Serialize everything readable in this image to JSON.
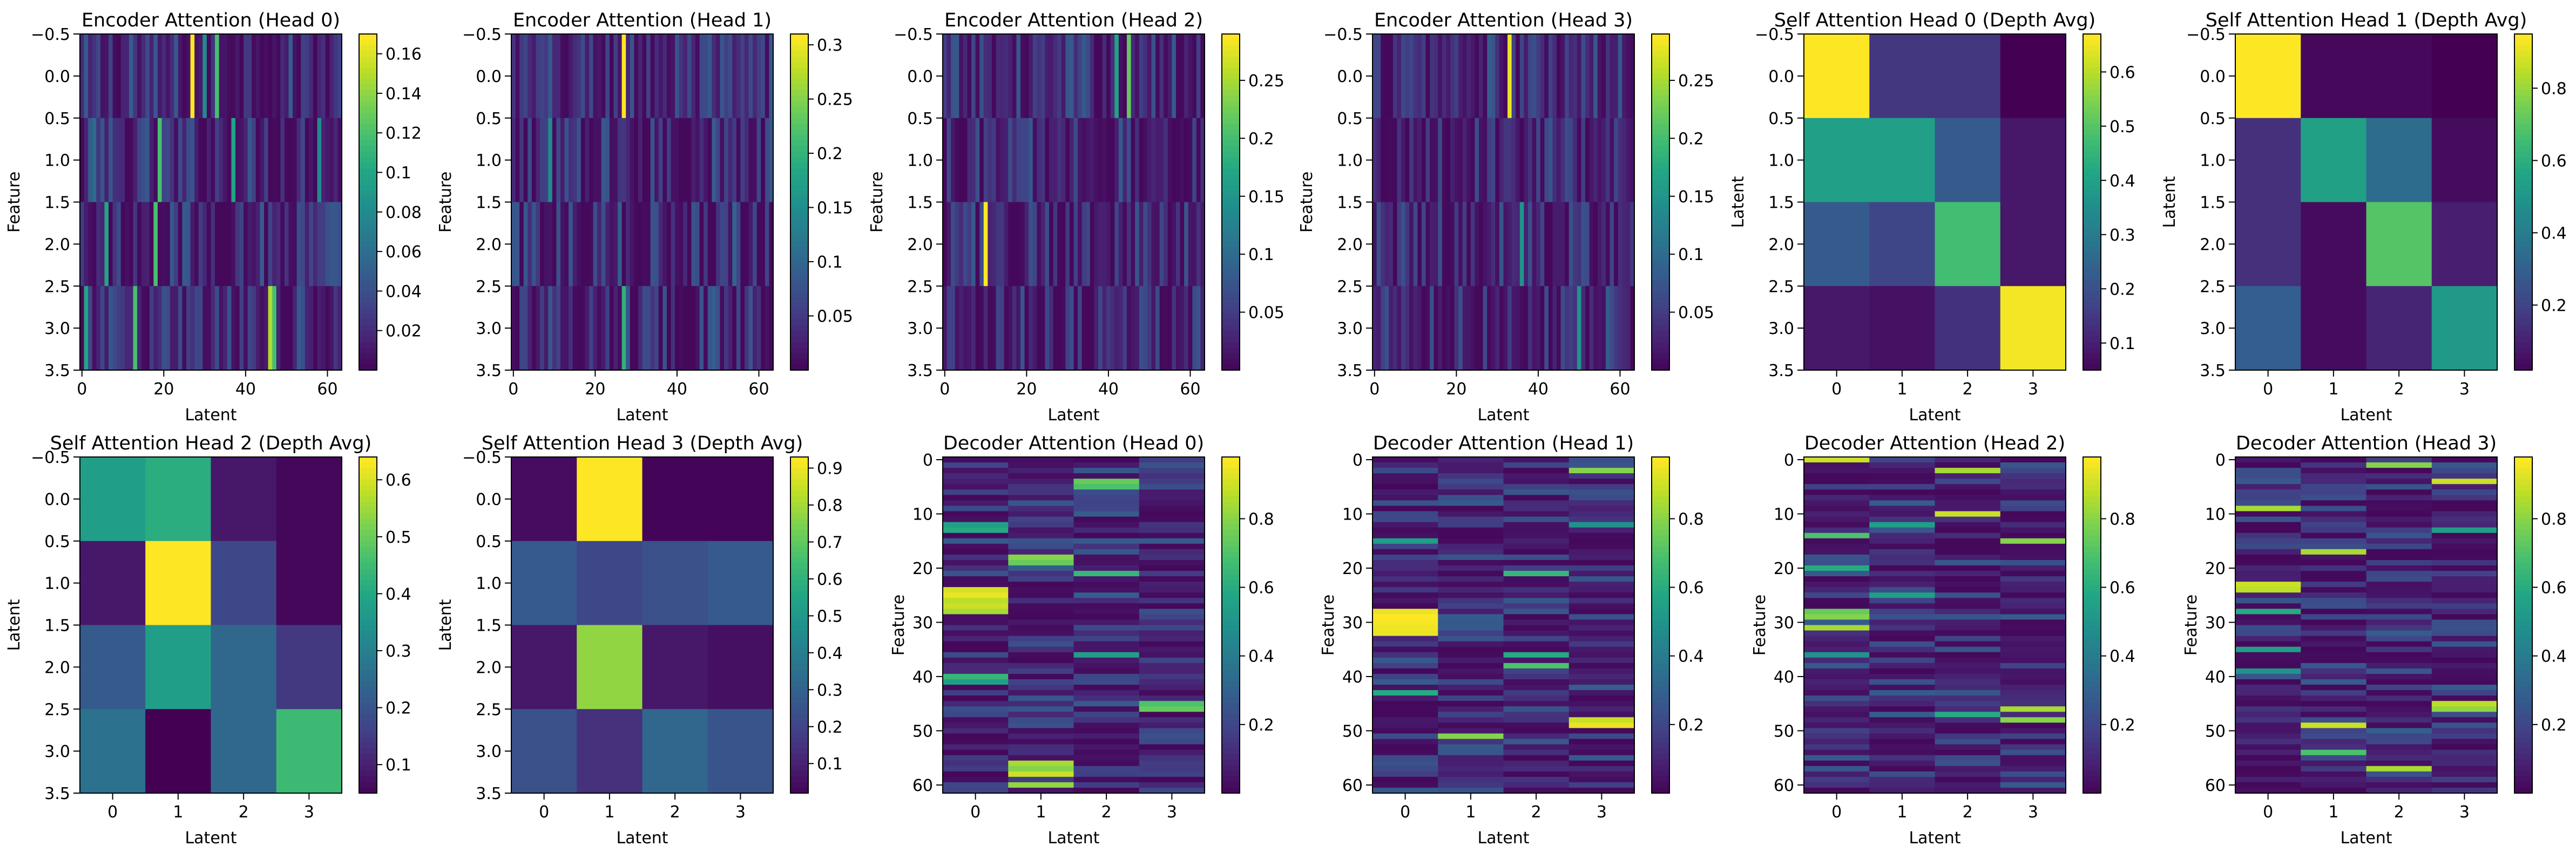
{
  "chart_data": [
    {
      "type": "heatmap",
      "title": "Encoder Attention (Head 0)",
      "xlabel": "Latent",
      "ylabel": "Feature",
      "xticks": [
        0,
        20,
        40,
        60
      ],
      "yticks": [
        -0.5,
        0.0,
        0.5,
        1.0,
        1.5,
        2.0,
        2.5,
        3.0,
        3.5
      ],
      "colorbar_ticks": [
        0.02,
        0.04,
        0.06,
        0.08,
        0.1,
        0.12,
        0.14,
        0.16
      ],
      "vmin": 0.0,
      "vmax": 0.17,
      "rows": 4,
      "cols": 64,
      "hot": [
        [
          0,
          27,
          0.17
        ],
        [
          0,
          33,
          0.12
        ],
        [
          0,
          30,
          0.08
        ],
        [
          0,
          12,
          0.05
        ],
        [
          1,
          19,
          0.12
        ],
        [
          1,
          37,
          0.1
        ],
        [
          1,
          58,
          0.08
        ],
        [
          1,
          3,
          0.06
        ],
        [
          2,
          6,
          0.1
        ],
        [
          2,
          18,
          0.12
        ],
        [
          2,
          44,
          0.05
        ],
        [
          3,
          1,
          0.1
        ],
        [
          3,
          13,
          0.12
        ],
        [
          3,
          46,
          0.15
        ],
        [
          3,
          47,
          0.12
        ]
      ]
    },
    {
      "type": "heatmap",
      "title": "Encoder Attention (Head 1)",
      "xlabel": "Latent",
      "ylabel": "Feature",
      "xticks": [
        0,
        20,
        40,
        60
      ],
      "yticks": [
        -0.5,
        0.0,
        0.5,
        1.0,
        1.5,
        2.0,
        2.5,
        3.0,
        3.5
      ],
      "colorbar_ticks": [
        0.05,
        0.1,
        0.15,
        0.2,
        0.25,
        0.3
      ],
      "vmin": 0.0,
      "vmax": 0.31,
      "rows": 4,
      "cols": 64,
      "hot": [
        [
          0,
          27,
          0.31
        ],
        [
          0,
          40,
          0.08
        ],
        [
          1,
          9,
          0.15
        ],
        [
          1,
          23,
          0.08
        ],
        [
          2,
          5,
          0.08
        ],
        [
          2,
          54,
          0.1
        ],
        [
          3,
          27,
          0.2
        ],
        [
          3,
          11,
          0.06
        ]
      ]
    },
    {
      "type": "heatmap",
      "title": "Encoder Attention (Head 2)",
      "xlabel": "Latent",
      "ylabel": "Feature",
      "xticks": [
        0,
        20,
        40,
        60
      ],
      "yticks": [
        -0.5,
        0.0,
        0.5,
        1.0,
        1.5,
        2.0,
        2.5,
        3.0,
        3.5
      ],
      "colorbar_ticks": [
        0.05,
        0.1,
        0.15,
        0.2,
        0.25
      ],
      "vmin": 0.0,
      "vmax": 0.29,
      "rows": 4,
      "cols": 64,
      "hot": [
        [
          0,
          42,
          0.17
        ],
        [
          0,
          45,
          0.22
        ],
        [
          0,
          30,
          0.08
        ],
        [
          1,
          21,
          0.08
        ],
        [
          2,
          10,
          0.29
        ],
        [
          2,
          35,
          0.06
        ],
        [
          3,
          48,
          0.07
        ]
      ]
    },
    {
      "type": "heatmap",
      "title": "Encoder Attention (Head 3)",
      "xlabel": "Latent",
      "ylabel": "Feature",
      "xticks": [
        0,
        20,
        40,
        60
      ],
      "yticks": [
        -0.5,
        0.0,
        0.5,
        1.0,
        1.5,
        2.0,
        2.5,
        3.0,
        3.5
      ],
      "colorbar_ticks": [
        0.05,
        0.1,
        0.15,
        0.2,
        0.25
      ],
      "vmin": 0.0,
      "vmax": 0.29,
      "rows": 4,
      "cols": 64,
      "hot": [
        [
          0,
          33,
          0.28
        ],
        [
          0,
          36,
          0.06
        ],
        [
          1,
          48,
          0.06
        ],
        [
          2,
          36,
          0.15
        ],
        [
          2,
          20,
          0.05
        ],
        [
          3,
          50,
          0.15
        ],
        [
          3,
          7,
          0.05
        ]
      ]
    },
    {
      "type": "heatmap",
      "title": "Self Attention Head 0 (Depth Avg)",
      "xlabel": "Latent",
      "ylabel": "Latent",
      "xticks": [
        0,
        1,
        2,
        3
      ],
      "yticks": [
        -0.5,
        0.0,
        0.5,
        1.0,
        1.5,
        2.0,
        2.5,
        3.0,
        3.5
      ],
      "colorbar_ticks": [
        0.1,
        0.2,
        0.3,
        0.4,
        0.5,
        0.6
      ],
      "vmin": 0.05,
      "vmax": 0.67,
      "matrix": [
        [
          0.67,
          0.15,
          0.15,
          0.05
        ],
        [
          0.4,
          0.4,
          0.23,
          0.09
        ],
        [
          0.23,
          0.18,
          0.48,
          0.09
        ],
        [
          0.09,
          0.08,
          0.14,
          0.66
        ]
      ]
    },
    {
      "type": "heatmap",
      "title": "Self Attention Head 1 (Depth Avg)",
      "xlabel": "Latent",
      "ylabel": "Latent",
      "xticks": [
        0,
        1,
        2,
        3
      ],
      "yticks": [
        -0.5,
        0.0,
        0.5,
        1.0,
        1.5,
        2.0,
        2.5,
        3.0,
        3.5
      ],
      "colorbar_ticks": [
        0.2,
        0.4,
        0.6,
        0.8
      ],
      "vmin": 0.02,
      "vmax": 0.95,
      "matrix": [
        [
          0.95,
          0.04,
          0.04,
          0.02
        ],
        [
          0.15,
          0.55,
          0.35,
          0.05
        ],
        [
          0.15,
          0.05,
          0.7,
          0.1
        ],
        [
          0.3,
          0.05,
          0.12,
          0.52
        ]
      ]
    },
    {
      "type": "heatmap",
      "title": "Self Attention Head 2 (Depth Avg)",
      "xlabel": "Latent",
      "ylabel": "Latent",
      "xticks": [
        0,
        1,
        2,
        3
      ],
      "yticks": [
        -0.5,
        0.0,
        0.5,
        1.0,
        1.5,
        2.0,
        2.5,
        3.0,
        3.5
      ],
      "colorbar_ticks": [
        0.1,
        0.2,
        0.3,
        0.4,
        0.5,
        0.6
      ],
      "vmin": 0.05,
      "vmax": 0.64,
      "matrix": [
        [
          0.38,
          0.42,
          0.09,
          0.06
        ],
        [
          0.09,
          0.64,
          0.18,
          0.06
        ],
        [
          0.22,
          0.38,
          0.25,
          0.15
        ],
        [
          0.27,
          0.05,
          0.25,
          0.45
        ]
      ]
    },
    {
      "type": "heatmap",
      "title": "Self Attention Head 3 (Depth Avg)",
      "xlabel": "Latent",
      "ylabel": "Latent",
      "xticks": [
        0,
        1,
        2,
        3
      ],
      "yticks": [
        -0.5,
        0.0,
        0.5,
        1.0,
        1.5,
        2.0,
        2.5,
        3.0,
        3.5
      ],
      "colorbar_ticks": [
        0.1,
        0.2,
        0.3,
        0.4,
        0.5,
        0.6,
        0.7,
        0.8,
        0.9
      ],
      "vmin": 0.02,
      "vmax": 0.93,
      "matrix": [
        [
          0.05,
          0.93,
          0.03,
          0.03
        ],
        [
          0.28,
          0.22,
          0.25,
          0.28
        ],
        [
          0.08,
          0.78,
          0.08,
          0.06
        ],
        [
          0.25,
          0.15,
          0.32,
          0.26
        ]
      ]
    },
    {
      "type": "heatmap",
      "title": "Decoder Attention (Head 0)",
      "xlabel": "Latent",
      "ylabel": "Feature",
      "xticks": [
        0,
        1,
        2,
        3
      ],
      "yticks": [
        0,
        10,
        20,
        30,
        40,
        50,
        60
      ],
      "colorbar_ticks": [
        0.2,
        0.4,
        0.6,
        0.8
      ],
      "vmin": 0.0,
      "vmax": 0.98,
      "rows": 62,
      "cols": 4,
      "hot": [
        [
          24,
          0,
          0.92
        ],
        [
          25,
          0,
          0.95
        ],
        [
          26,
          0,
          0.88
        ],
        [
          27,
          0,
          0.9
        ],
        [
          28,
          0,
          0.85
        ],
        [
          4,
          2,
          0.75
        ],
        [
          5,
          2,
          0.7
        ],
        [
          18,
          1,
          0.8
        ],
        [
          19,
          1,
          0.75
        ],
        [
          56,
          1,
          0.85
        ],
        [
          57,
          1,
          0.8
        ],
        [
          58,
          1,
          0.9
        ],
        [
          60,
          1,
          0.82
        ],
        [
          45,
          3,
          0.7
        ],
        [
          46,
          3,
          0.75
        ],
        [
          12,
          0,
          0.55
        ],
        [
          13,
          0,
          0.6
        ],
        [
          40,
          0,
          0.65
        ],
        [
          41,
          0,
          0.55
        ],
        [
          21,
          2,
          0.65
        ],
        [
          36,
          2,
          0.55
        ]
      ]
    },
    {
      "type": "heatmap",
      "title": "Decoder Attention (Head 1)",
      "xlabel": "Latent",
      "ylabel": "Feature",
      "xticks": [
        0,
        1,
        2,
        3
      ],
      "yticks": [
        0,
        10,
        20,
        30,
        40,
        50,
        60
      ],
      "colorbar_ticks": [
        0.2,
        0.4,
        0.6,
        0.8
      ],
      "vmin": 0.0,
      "vmax": 0.98,
      "rows": 62,
      "cols": 4,
      "hot": [
        [
          28,
          0,
          0.95
        ],
        [
          29,
          0,
          0.98
        ],
        [
          30,
          0,
          0.97
        ],
        [
          31,
          0,
          0.96
        ],
        [
          32,
          0,
          0.95
        ],
        [
          48,
          3,
          0.9
        ],
        [
          49,
          3,
          0.95
        ],
        [
          2,
          3,
          0.8
        ],
        [
          38,
          2,
          0.7
        ],
        [
          36,
          2,
          0.6
        ],
        [
          21,
          2,
          0.65
        ],
        [
          15,
          0,
          0.55
        ],
        [
          43,
          0,
          0.6
        ],
        [
          51,
          1,
          0.8
        ],
        [
          12,
          3,
          0.5
        ]
      ]
    },
    {
      "type": "heatmap",
      "title": "Decoder Attention (Head 2)",
      "xlabel": "Latent",
      "ylabel": "Feature",
      "xticks": [
        0,
        1,
        2,
        3
      ],
      "yticks": [
        0,
        10,
        20,
        30,
        40,
        50,
        60
      ],
      "colorbar_ticks": [
        0.2,
        0.4,
        0.6,
        0.8
      ],
      "vmin": 0.0,
      "vmax": 0.98,
      "rows": 62,
      "cols": 4,
      "hot": [
        [
          0,
          0,
          0.9
        ],
        [
          2,
          2,
          0.85
        ],
        [
          10,
          2,
          0.9
        ],
        [
          14,
          0,
          0.7
        ],
        [
          15,
          3,
          0.8
        ],
        [
          28,
          0,
          0.75
        ],
        [
          29,
          0,
          0.8
        ],
        [
          31,
          0,
          0.85
        ],
        [
          46,
          3,
          0.85
        ],
        [
          48,
          3,
          0.8
        ],
        [
          47,
          2,
          0.6
        ],
        [
          12,
          1,
          0.55
        ],
        [
          20,
          0,
          0.6
        ],
        [
          25,
          1,
          0.55
        ],
        [
          36,
          0,
          0.5
        ]
      ]
    },
    {
      "type": "heatmap",
      "title": "Decoder Attention (Head 3)",
      "xlabel": "Latent",
      "ylabel": "Feature",
      "xticks": [
        0,
        1,
        2,
        3
      ],
      "yticks": [
        0,
        10,
        20,
        30,
        40,
        50,
        60
      ],
      "colorbar_ticks": [
        0.2,
        0.4,
        0.6,
        0.8
      ],
      "vmin": 0.0,
      "vmax": 0.98,
      "rows": 62,
      "cols": 4,
      "hot": [
        [
          1,
          2,
          0.8
        ],
        [
          4,
          3,
          0.9
        ],
        [
          9,
          0,
          0.85
        ],
        [
          17,
          1,
          0.85
        ],
        [
          23,
          0,
          0.9
        ],
        [
          24,
          0,
          0.88
        ],
        [
          28,
          0,
          0.6
        ],
        [
          35,
          0,
          0.55
        ],
        [
          45,
          3,
          0.88
        ],
        [
          46,
          3,
          0.82
        ],
        [
          49,
          1,
          0.9
        ],
        [
          54,
          1,
          0.7
        ],
        [
          57,
          2,
          0.85
        ],
        [
          13,
          3,
          0.55
        ],
        [
          39,
          0,
          0.5
        ]
      ]
    }
  ]
}
